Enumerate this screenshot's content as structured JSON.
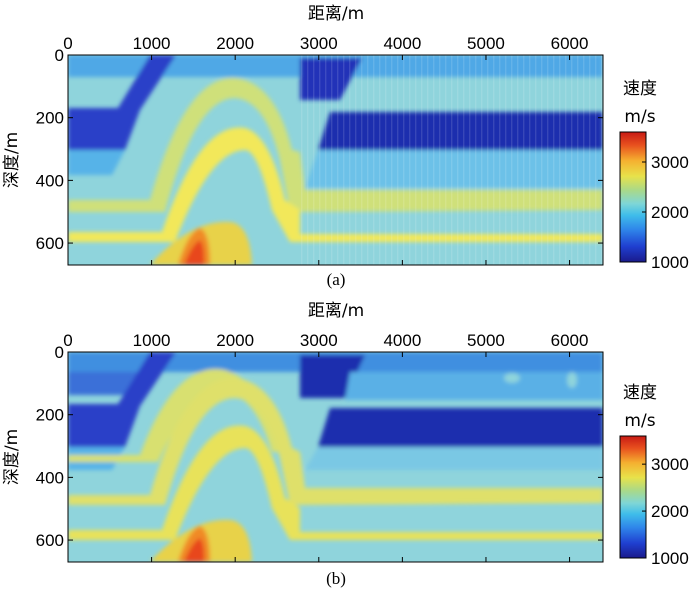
{
  "colors": {
    "background": "#ffffff",
    "colormap": [
      "#1a1a8c",
      "#1f3fd0",
      "#2f86ea",
      "#3fbdea",
      "#7fd6d6",
      "#a8d98a",
      "#e8e24a",
      "#f5b030",
      "#e8501e",
      "#c81a14"
    ]
  },
  "chart_data": [
    {
      "type": "heatmap",
      "panel_label": "(a)",
      "xlabel": "距离/m",
      "ylabel": "深度/m",
      "xlim": [
        0,
        6400
      ],
      "ylim": [
        670,
        0
      ],
      "x_ticks": [
        0,
        1000,
        2000,
        3000,
        4000,
        5000,
        6000
      ],
      "x_tick_labels": [
        "0",
        "1000",
        "2000",
        "3000",
        "4000",
        "5000",
        "6000"
      ],
      "y_ticks": [
        0,
        200,
        400,
        600
      ],
      "y_tick_labels": [
        "0",
        "200",
        "400",
        "600"
      ],
      "colorbar": {
        "title": "速度",
        "unit": "m/s",
        "range": [
          1000,
          3600
        ],
        "ticks": [
          1000,
          2000,
          3000
        ],
        "tick_labels": [
          "1000",
          "2000",
          "3000"
        ]
      }
    },
    {
      "type": "heatmap",
      "panel_label": "(b)",
      "xlabel": "距离/m",
      "ylabel": "深度/m",
      "xlim": [
        0,
        6400
      ],
      "ylim": [
        670,
        0
      ],
      "x_ticks": [
        0,
        1000,
        2000,
        3000,
        4000,
        5000,
        6000
      ],
      "x_tick_labels": [
        "0",
        "1000",
        "2000",
        "3000",
        "4000",
        "5000",
        "6000"
      ],
      "y_ticks": [
        0,
        200,
        400,
        600
      ],
      "y_tick_labels": [
        "0",
        "200",
        "400",
        "600"
      ],
      "colorbar": {
        "title": "速度",
        "unit": "m/s",
        "range": [
          1000,
          3600
        ],
        "ticks": [
          1000,
          2000,
          3000
        ],
        "tick_labels": [
          "1000",
          "2000",
          "3000"
        ]
      }
    }
  ]
}
